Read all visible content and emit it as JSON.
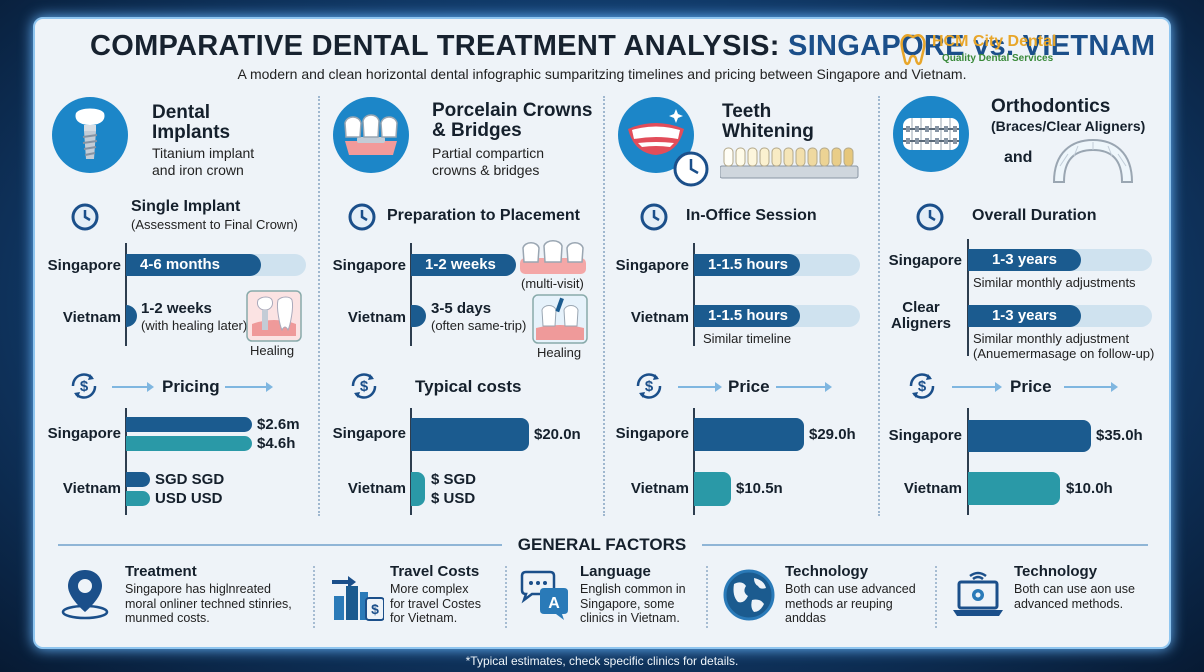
{
  "header": {
    "title_prefix": "COMPARATIVE DENTAL TREATMENT ANALYSIS: ",
    "title_highlight": "SINGAPORE vs. VIETNAM",
    "subtitle": "A modern and clean horizontal dental infographic sumparitzing timelines and pricing between Singapore and Vietnam.",
    "logo_line1": "HCM City Dental",
    "logo_line2": "Quality Dental Services"
  },
  "columns": [
    {
      "icon": "dental-implant-icon",
      "title": "Dental\nImplants",
      "subtitle": "Titanium implant\nand iron crown",
      "section_title": "Single Implant",
      "section_sub": "(Assessment to Final Crown)",
      "singapore_label": "Singapore",
      "vietnam_label": "Vietnam",
      "singapore_bar": "4-6 months",
      "vietnam_main": "1-2 weeks",
      "vietnam_note": "(with healing later)",
      "image_caption": "Healing",
      "pricing_title": "Pricing",
      "price_sg_1": "$2.6m",
      "price_sg_2": "$4.6h",
      "price_vn_1": "SGD SGD",
      "price_vn_2": "USD USD"
    },
    {
      "icon": "crown-bridge-icon",
      "title": "Porcelain Crowns\n& Bridges",
      "subtitle": "Partial comparticn\ncrowns & bridges",
      "section_title": "Preparation to Placement",
      "singapore_label": "Singapore",
      "vietnam_label": "Vietnam",
      "singapore_bar": "1-2 weeks",
      "singapore_note": "(multi-visit)",
      "vietnam_main": "3-5 days",
      "vietnam_note": "(often same-trip)",
      "image_caption": "Healing",
      "pricing_title": "Typical costs",
      "price_sg": "$20.0n",
      "price_vn_1": "$ SGD",
      "price_vn_2": "$ USD"
    },
    {
      "icon": "smile-whitening-icon",
      "title": "Teeth\nWhitening",
      "section_title": "In-Office Session",
      "singapore_label": "Singapore",
      "vietnam_label": "Vietnam",
      "singapore_bar": "1-1.5 hours",
      "vietnam_bar": "1-1.5 hours",
      "vietnam_note": "Similar timeline",
      "pricing_title": "Price",
      "price_sg": "$29.0h",
      "price_vn": "$10.5n"
    },
    {
      "icon": "braces-icon",
      "title": "Orthodontics",
      "subtitle": "(Braces/Clear Aligners)",
      "and_label": "and",
      "section_title": "Overall Duration",
      "singapore_label": "Singapore",
      "aligner_label": "Clear\nAligners",
      "vietnam_label": "Vietnam",
      "singapore_bar": "1-3 years",
      "singapore_note": "Similar monthly adjustments",
      "aligner_bar": "1-3 years",
      "aligner_note_1": "Similar monthly adjustment",
      "aligner_note_2": "(Anuemermasage on follow-up)",
      "pricing_title": "Price",
      "price_sg": "$35.0h",
      "price_vn": "$10.0h"
    }
  ],
  "chart_data": [
    {
      "type": "bar",
      "title": "Single Implant",
      "categories": [
        "Singapore",
        "Vietnam"
      ],
      "series": [
        {
          "values": [
            "4-6 months",
            "1-2 weeks"
          ]
        }
      ]
    },
    {
      "type": "bar",
      "title": "Preparation to Placement",
      "categories": [
        "Singapore",
        "Vietnam"
      ],
      "series": [
        {
          "values": [
            "1-2 weeks",
            "3-5 days"
          ]
        }
      ]
    },
    {
      "type": "bar",
      "title": "In-Office Session",
      "categories": [
        "Singapore",
        "Vietnam"
      ],
      "series": [
        {
          "values": [
            "1-1.5 hours",
            "1-1.5 hours"
          ]
        }
      ]
    },
    {
      "type": "bar",
      "title": "Overall Duration",
      "categories": [
        "Singapore",
        "Clear Aligners"
      ],
      "series": [
        {
          "values": [
            "1-3 years",
            "1-3 years"
          ]
        }
      ]
    },
    {
      "type": "bar",
      "title": "Typical costs",
      "categories": [
        "Singapore",
        "Vietnam"
      ],
      "series": [
        {
          "values": [
            20.0,
            null
          ]
        }
      ]
    },
    {
      "type": "bar",
      "title": "Price",
      "categories": [
        "Singapore",
        "Vietnam"
      ],
      "series": [
        {
          "values": [
            29.0,
            10.5
          ]
        }
      ]
    },
    {
      "type": "bar",
      "title": "Price",
      "categories": [
        "Singapore",
        "Vietnam"
      ],
      "series": [
        {
          "values": [
            35.0,
            10.0
          ]
        }
      ]
    }
  ],
  "general": {
    "title": "GENERAL FACTORS",
    "items": [
      {
        "icon": "location-pin-icon",
        "title": "Treatment",
        "desc": "Singapore has higlnreated\nmoral onliner techned stinries,\nmunmed costs."
      },
      {
        "icon": "travel-cost-icon",
        "title": "Travel Costs",
        "desc": "More complex\nfor travel Costes\nfor Vietnam."
      },
      {
        "icon": "language-chat-icon",
        "title": "Language",
        "desc": "English common in\nSingapore, some\nclinics in Vietnam."
      },
      {
        "icon": "globe-technology-icon",
        "title": "Technology",
        "desc": "Both can use advanced\nmethods ar reuping\nanddas"
      },
      {
        "icon": "laptop-technology-icon",
        "title": "Technology",
        "desc": "Both can use aon use\nadvanced methods."
      }
    ]
  },
  "footer": "*Typical estimates, check specific clinics for details.",
  "colors": {
    "dark_bar": "#1b5b8f",
    "teal_bar": "#2a99a7",
    "track": "#cfe2ef",
    "icon_circle": "#1c86c8"
  }
}
